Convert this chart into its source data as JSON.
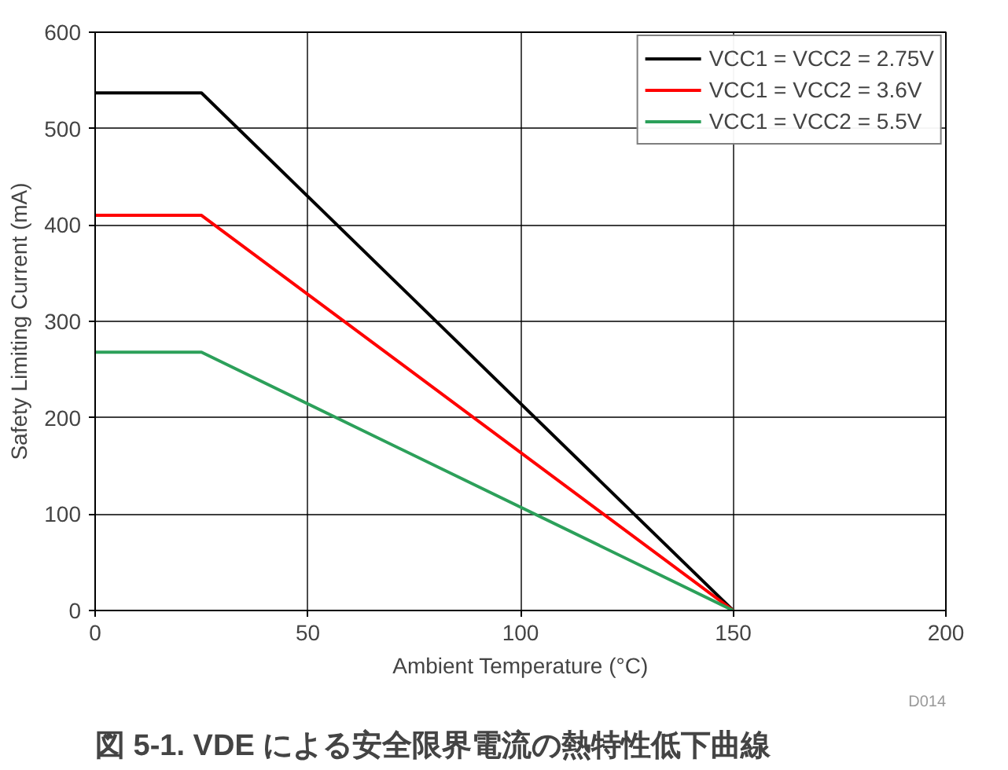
{
  "chart_data": {
    "type": "line",
    "title": "図 5-1. VDE による安全限界電流の熱特性低下曲線",
    "xlabel": "Ambient Temperature (°C)",
    "ylabel": "Safety Limiting Current (mA)",
    "x": [
      0,
      25,
      150
    ],
    "series": [
      {
        "name": "VCC1 = VCC2 = 2.75V",
        "color": "#000000",
        "values": [
          537,
          537,
          0
        ]
      },
      {
        "name": "VCC1 = VCC2 = 3.6V",
        "color": "#ff0000",
        "values": [
          410,
          410,
          0
        ]
      },
      {
        "name": "VCC1 = VCC2 = 5.5V",
        "color": "#2ca05a",
        "values": [
          268,
          268,
          0
        ]
      }
    ],
    "xlim": [
      0,
      200
    ],
    "xticks": [
      0,
      50,
      100,
      150,
      200
    ],
    "ylim": [
      0,
      600
    ],
    "yticks": [
      0,
      100,
      200,
      300,
      400,
      500,
      600
    ],
    "grid": true,
    "legend": "top right",
    "annotations": [
      "D014"
    ]
  }
}
